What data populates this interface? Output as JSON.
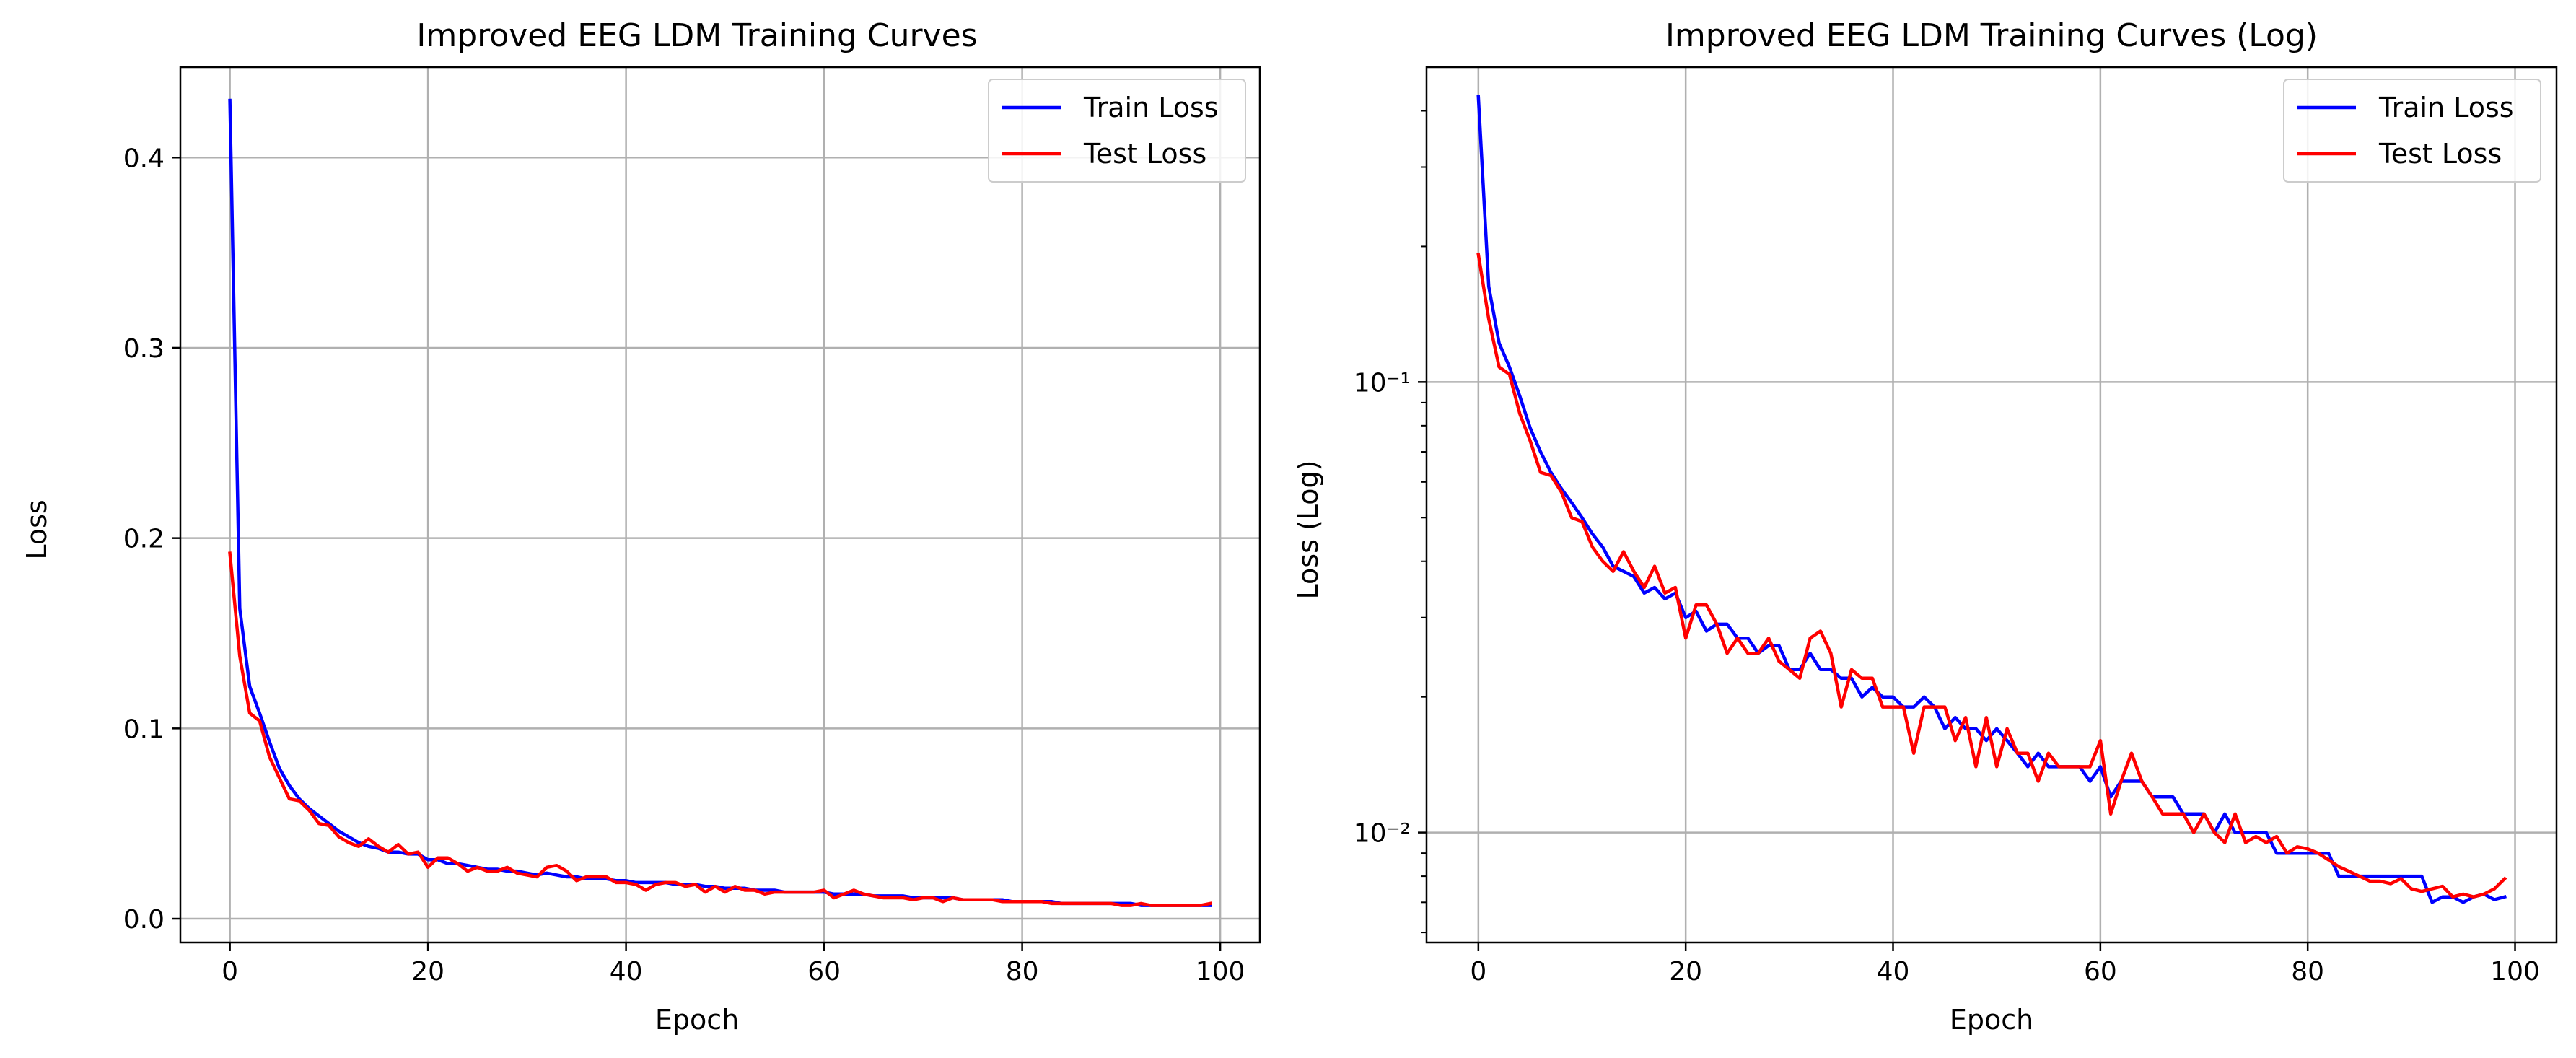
{
  "colors": {
    "train": "#0000ff",
    "test": "#ff0000",
    "grid": "#b0b0b0",
    "axes": "#000000"
  },
  "chart_data": [
    {
      "type": "line",
      "title": "Improved EEG LDM Training Curves",
      "xlabel": "Epoch",
      "ylabel": "Loss",
      "xlim": [
        -5,
        104
      ],
      "ylim": [
        -0.0125,
        0.4475
      ],
      "yscale": "linear",
      "xticks": [
        0,
        20,
        40,
        60,
        80,
        100
      ],
      "xtick_labels": [
        "0",
        "20",
        "40",
        "60",
        "80",
        "100"
      ],
      "yticks": [
        0.0,
        0.1,
        0.2,
        0.3,
        0.4
      ],
      "ytick_labels": [
        "0.0",
        "0.1",
        "0.2",
        "0.3",
        "0.4"
      ],
      "grid": true,
      "legend": "top-right",
      "series": [
        {
          "name": "Train Loss",
          "color": "#0000ff",
          "values": [
            0.43,
            0.163,
            0.122,
            0.108,
            0.093,
            0.079,
            0.07,
            0.063,
            0.058,
            0.054,
            0.05,
            0.046,
            0.043,
            0.04,
            0.038,
            0.037,
            0.035,
            0.035,
            0.034,
            0.034,
            0.031,
            0.031,
            0.029,
            0.029,
            0.028,
            0.027,
            0.026,
            0.026,
            0.025,
            0.025,
            0.024,
            0.023,
            0.024,
            0.023,
            0.022,
            0.022,
            0.021,
            0.021,
            0.021,
            0.02,
            0.02,
            0.019,
            0.019,
            0.019,
            0.019,
            0.018,
            0.018,
            0.018,
            0.017,
            0.017,
            0.016,
            0.016,
            0.016,
            0.015,
            0.015,
            0.015,
            0.014,
            0.014,
            0.014,
            0.014,
            0.014,
            0.013,
            0.013,
            0.013,
            0.013,
            0.012,
            0.012,
            0.012,
            0.012,
            0.011,
            0.011,
            0.011,
            0.011,
            0.011,
            0.01,
            0.01,
            0.01,
            0.01,
            0.01,
            0.009,
            0.009,
            0.009,
            0.009,
            0.009,
            0.008,
            0.008,
            0.008,
            0.008,
            0.008,
            0.008,
            0.008,
            0.008,
            0.007,
            0.007,
            0.007,
            0.007,
            0.007,
            0.007,
            0.007,
            0.007
          ]
        },
        {
          "name": "Test Loss",
          "color": "#ff0000",
          "values": [
            0.192,
            0.138,
            0.108,
            0.104,
            0.085,
            0.074,
            0.063,
            0.062,
            0.057,
            0.05,
            0.049,
            0.043,
            0.04,
            0.038,
            0.042,
            0.038,
            0.035,
            0.039,
            0.034,
            0.035,
            0.027,
            0.032,
            0.032,
            0.029,
            0.025,
            0.027,
            0.025,
            0.025,
            0.027,
            0.024,
            0.023,
            0.022,
            0.027,
            0.028,
            0.025,
            0.02,
            0.022,
            0.022,
            0.022,
            0.019,
            0.019,
            0.018,
            0.015,
            0.018,
            0.019,
            0.019,
            0.017,
            0.018,
            0.014,
            0.017,
            0.014,
            0.017,
            0.015,
            0.015,
            0.013,
            0.014,
            0.014,
            0.014,
            0.014,
            0.014,
            0.015,
            0.011,
            0.013,
            0.015,
            0.013,
            0.012,
            0.011,
            0.011,
            0.011,
            0.01,
            0.011,
            0.011,
            0.009,
            0.011,
            0.01,
            0.01,
            0.01,
            0.01,
            0.009,
            0.009,
            0.009,
            0.009,
            0.009,
            0.008,
            0.008,
            0.008,
            0.008,
            0.008,
            0.008,
            0.008,
            0.007,
            0.007,
            0.008,
            0.007,
            0.007,
            0.007,
            0.007,
            0.007,
            0.007,
            0.008
          ]
        }
      ]
    },
    {
      "type": "line",
      "title": "Improved EEG LDM Training Curves (Log)",
      "xlabel": "Epoch",
      "ylabel": "Loss (Log)",
      "xlim": [
        -5,
        104
      ],
      "ylim": [
        0.0057,
        0.5
      ],
      "yscale": "log",
      "xticks": [
        0,
        20,
        40,
        60,
        80,
        100
      ],
      "xtick_labels": [
        "0",
        "20",
        "40",
        "60",
        "80",
        "100"
      ],
      "yticks": [
        0.01,
        0.1
      ],
      "ytick_labels": [
        "10⁻²",
        "10⁻¹"
      ],
      "grid": true,
      "legend": "top-right",
      "series": [
        {
          "name": "Train Loss",
          "color": "#0000ff",
          "values": [
            0.43,
            0.163,
            0.122,
            0.108,
            0.093,
            0.079,
            0.07,
            0.063,
            0.058,
            0.054,
            0.05,
            0.046,
            0.043,
            0.039,
            0.038,
            0.037,
            0.034,
            0.035,
            0.033,
            0.034,
            0.03,
            0.031,
            0.028,
            0.029,
            0.029,
            0.027,
            0.027,
            0.025,
            0.026,
            0.026,
            0.023,
            0.023,
            0.025,
            0.023,
            0.023,
            0.022,
            0.022,
            0.02,
            0.021,
            0.02,
            0.02,
            0.019,
            0.019,
            0.02,
            0.019,
            0.017,
            0.018,
            0.017,
            0.017,
            0.016,
            0.017,
            0.016,
            0.015,
            0.014,
            0.015,
            0.014,
            0.014,
            0.014,
            0.014,
            0.013,
            0.014,
            0.012,
            0.013,
            0.013,
            0.013,
            0.012,
            0.012,
            0.012,
            0.011,
            0.011,
            0.011,
            0.01,
            0.011,
            0.01,
            0.01,
            0.01,
            0.01,
            0.009,
            0.009,
            0.009,
            0.009,
            0.009,
            0.009,
            0.008,
            0.008,
            0.008,
            0.008,
            0.008,
            0.008,
            0.008,
            0.008,
            0.008,
            0.007,
            0.0072,
            0.0072,
            0.007,
            0.0072,
            0.0073,
            0.0071,
            0.0072
          ]
        },
        {
          "name": "Test Loss",
          "color": "#ff0000",
          "values": [
            0.192,
            0.138,
            0.108,
            0.104,
            0.085,
            0.074,
            0.063,
            0.062,
            0.057,
            0.05,
            0.049,
            0.043,
            0.04,
            0.038,
            0.042,
            0.038,
            0.035,
            0.039,
            0.034,
            0.035,
            0.027,
            0.032,
            0.032,
            0.029,
            0.025,
            0.027,
            0.025,
            0.025,
            0.027,
            0.024,
            0.023,
            0.022,
            0.027,
            0.028,
            0.025,
            0.019,
            0.023,
            0.022,
            0.022,
            0.019,
            0.019,
            0.019,
            0.015,
            0.019,
            0.019,
            0.019,
            0.016,
            0.018,
            0.014,
            0.018,
            0.014,
            0.017,
            0.015,
            0.015,
            0.013,
            0.015,
            0.014,
            0.014,
            0.014,
            0.014,
            0.016,
            0.011,
            0.013,
            0.015,
            0.013,
            0.012,
            0.011,
            0.011,
            0.011,
            0.01,
            0.011,
            0.01,
            0.0095,
            0.011,
            0.0095,
            0.0098,
            0.0095,
            0.0098,
            0.009,
            0.0093,
            0.0092,
            0.009,
            0.0087,
            0.0084,
            0.0082,
            0.008,
            0.0078,
            0.0078,
            0.0077,
            0.0079,
            0.0075,
            0.0074,
            0.0075,
            0.0076,
            0.0072,
            0.0073,
            0.0072,
            0.0073,
            0.0075,
            0.0079
          ]
        }
      ]
    }
  ]
}
